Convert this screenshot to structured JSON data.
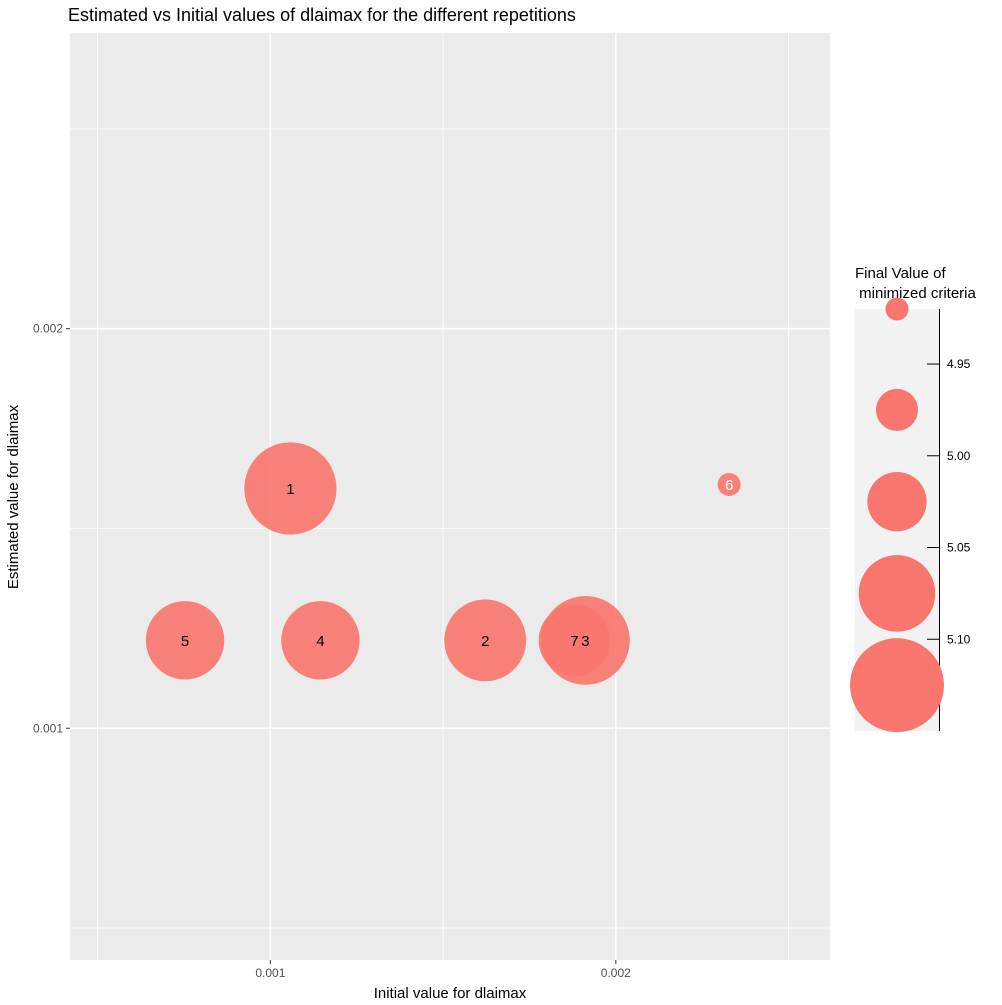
{
  "chart_data": {
    "type": "scatter",
    "title": "Estimated vs Initial values of dlaimax for the different repetitions",
    "xlabel": "Initial value for dlaimax",
    "ylabel": "Estimated value for dlaimax",
    "xlim": [
      0.00042,
      0.00262
    ],
    "ylim": [
      0.00042,
      0.00274
    ],
    "x_ticks": [
      0.001,
      0.002
    ],
    "x_tick_labels": [
      "0.001",
      "0.002"
    ],
    "y_ticks": [
      0.001,
      0.002
    ],
    "y_tick_labels": [
      "0.001",
      "0.002"
    ],
    "grid": true,
    "point_color": "#F8766D",
    "points": [
      {
        "label": "1",
        "x": 0.001058,
        "y": 0.0016,
        "size": 5.12
      },
      {
        "label": "2",
        "x": 0.001622,
        "y": 0.00122,
        "size": 5.09
      },
      {
        "label": "3",
        "x": 0.001912,
        "y": 0.00122,
        "size": 5.11
      },
      {
        "label": "4",
        "x": 0.001145,
        "y": 0.00122,
        "size": 5.08
      },
      {
        "label": "5",
        "x": 0.000753,
        "y": 0.00122,
        "size": 5.08
      },
      {
        "label": "6",
        "x": 0.002328,
        "y": 0.00161,
        "size": 4.92
      },
      {
        "label": "7",
        "x": 0.00188,
        "y": 0.00122,
        "size": 5.06
      }
    ],
    "legend": {
      "title_lines": [
        "Final Value of",
        " minimized criteria"
      ],
      "position": "right",
      "breaks": [
        4.95,
        5.0,
        5.05,
        5.1
      ],
      "break_labels": [
        "4.95",
        "5.00",
        "5.05",
        "5.10"
      ],
      "key_sizes": [
        4.92,
        4.975,
        5.025,
        5.075,
        5.125
      ]
    }
  }
}
